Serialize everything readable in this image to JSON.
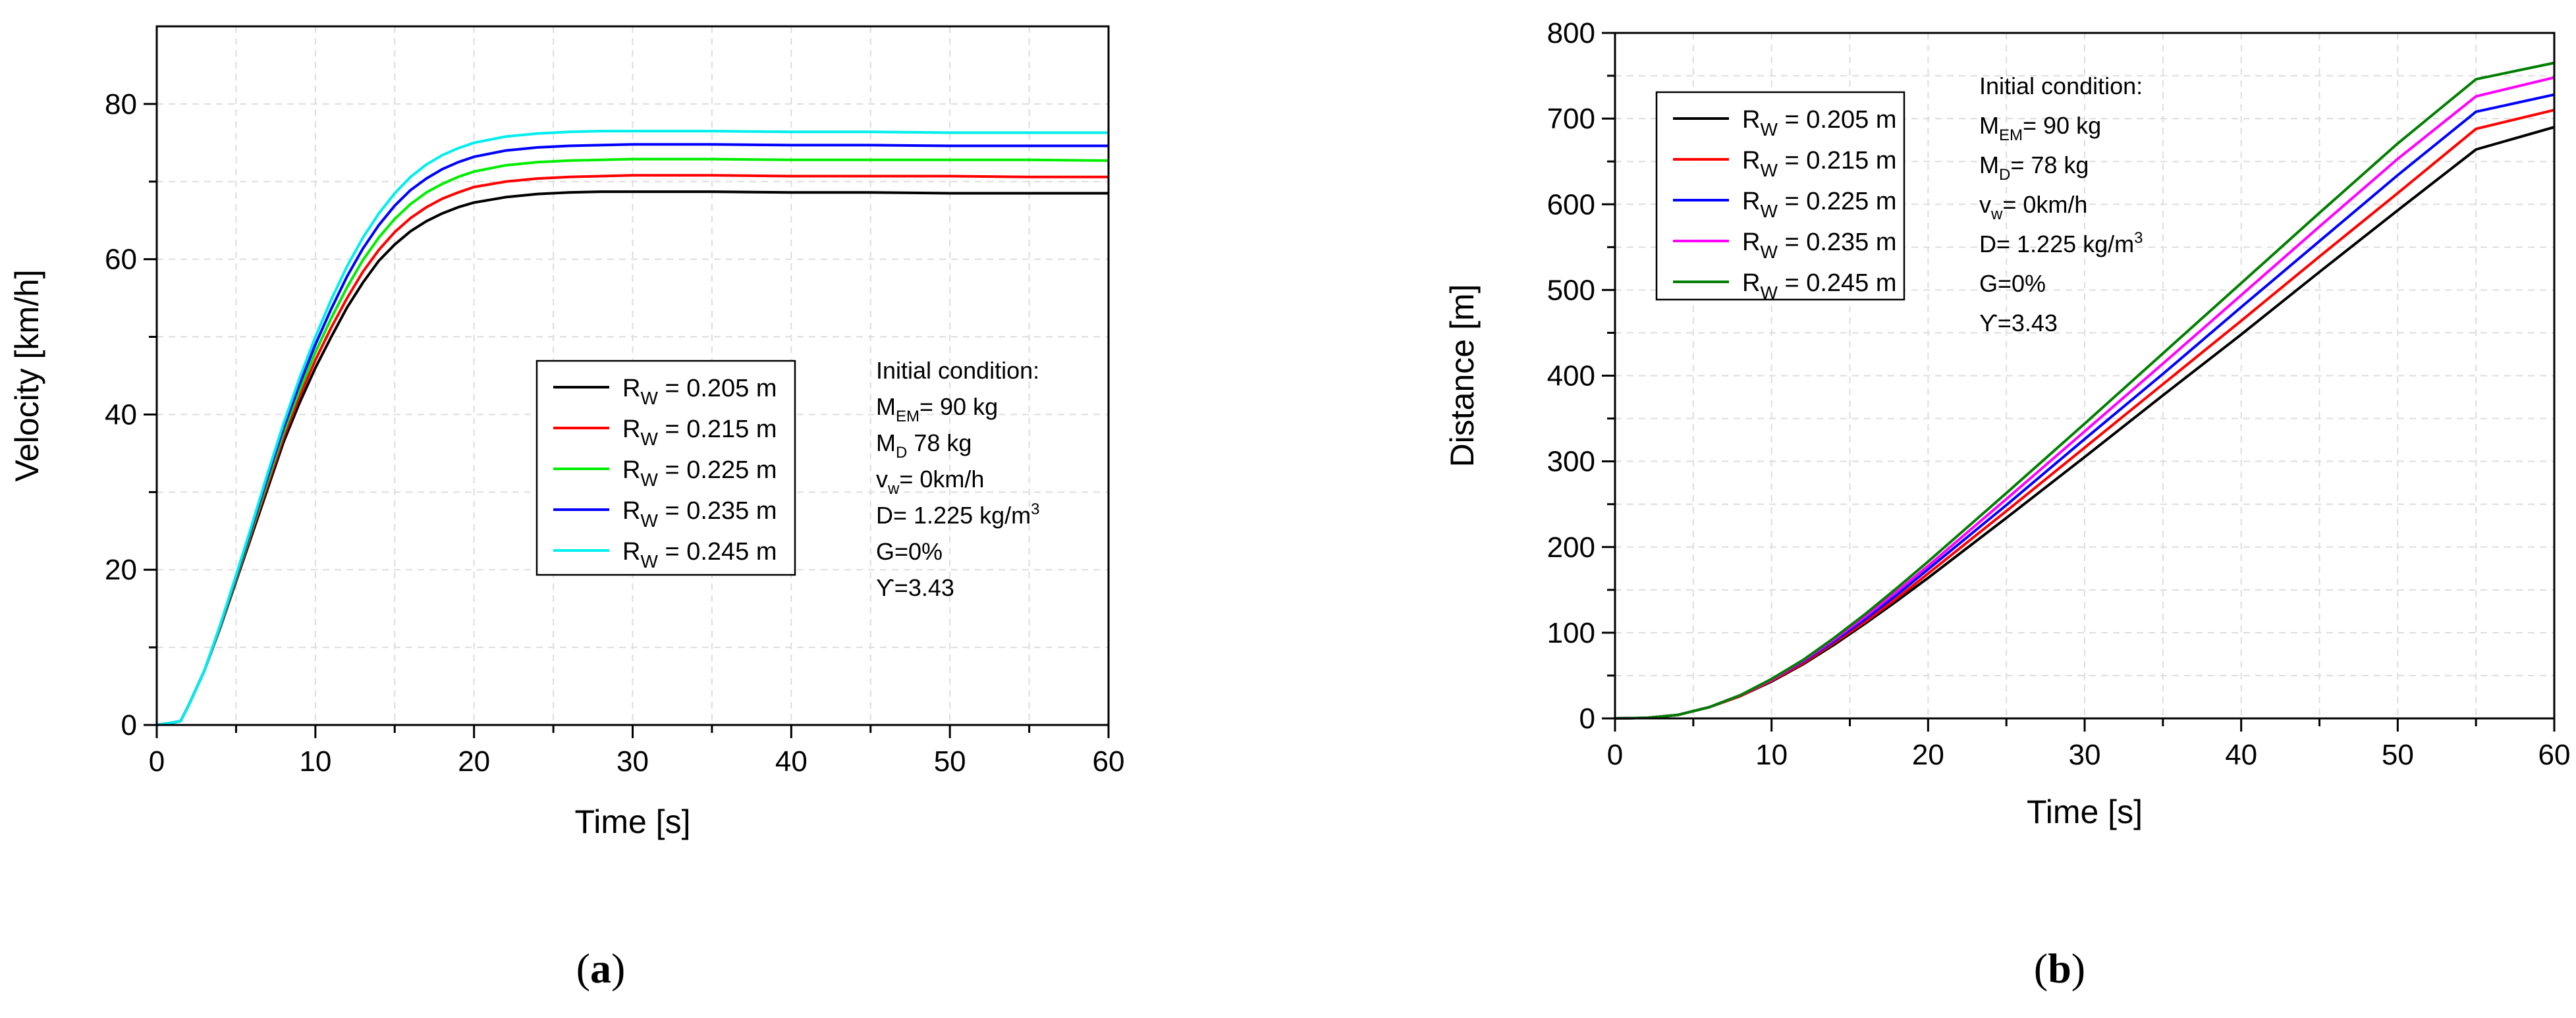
{
  "chart_data": [
    {
      "type": "line",
      "id": "a",
      "panel_label": "a",
      "xlabel": "Time [s]",
      "ylabel": "Velocity [km/h]",
      "xlim": [
        0,
        60
      ],
      "ylim": [
        0,
        90
      ],
      "xticks": [
        0,
        10,
        20,
        30,
        40,
        50,
        60
      ],
      "yticks": [
        0,
        20,
        40,
        60,
        80
      ],
      "grid": true,
      "legend_position": "center-right",
      "x": [
        0,
        1,
        1.5,
        2,
        3,
        4,
        5,
        6,
        7,
        8,
        9,
        10,
        11,
        12,
        13,
        14,
        15,
        16,
        17,
        18,
        19,
        20,
        22,
        24,
        26,
        28,
        30,
        35,
        40,
        45,
        50,
        55,
        60
      ],
      "series": [
        {
          "name": "R_W = 0.205 m",
          "sub": "W",
          "color": "#000000",
          "values": [
            0,
            0.3,
            0.5,
            2.5,
            7,
            12.5,
            18.5,
            24.5,
            30.5,
            36.5,
            41.5,
            46,
            50,
            53.8,
            57,
            59.8,
            61.9,
            63.6,
            64.9,
            65.9,
            66.7,
            67.3,
            68,
            68.4,
            68.6,
            68.7,
            68.7,
            68.7,
            68.6,
            68.6,
            68.5,
            68.5,
            68.5
          ]
        },
        {
          "name": "R_W = 0.215 m",
          "sub": "W",
          "color": "#ff0000",
          "values": [
            0,
            0.3,
            0.5,
            2.5,
            7,
            12.6,
            18.7,
            24.9,
            31,
            37.1,
            42.3,
            47,
            51.2,
            55,
            58.4,
            61.2,
            63.5,
            65.3,
            66.7,
            67.8,
            68.6,
            69.3,
            70,
            70.4,
            70.6,
            70.7,
            70.8,
            70.8,
            70.7,
            70.7,
            70.7,
            70.6,
            70.6
          ]
        },
        {
          "name": "R_W = 0.225 m",
          "sub": "W",
          "color": "#00ee00",
          "values": [
            0,
            0.3,
            0.5,
            2.5,
            7,
            12.7,
            18.9,
            25.2,
            31.5,
            37.7,
            43.1,
            48,
            52.4,
            56.4,
            59.9,
            62.8,
            65.2,
            67.1,
            68.6,
            69.7,
            70.6,
            71.3,
            72.1,
            72.5,
            72.7,
            72.8,
            72.9,
            72.9,
            72.8,
            72.8,
            72.8,
            72.8,
            72.7
          ]
        },
        {
          "name": "R_W = 0.235 m",
          "sub": "W",
          "color": "#0000ff",
          "values": [
            0,
            0.3,
            0.5,
            2.5,
            7,
            12.8,
            19.1,
            25.5,
            32,
            38.3,
            43.9,
            49,
            53.6,
            57.8,
            61.4,
            64.4,
            66.9,
            68.9,
            70.4,
            71.6,
            72.5,
            73.2,
            74,
            74.4,
            74.6,
            74.7,
            74.8,
            74.8,
            74.7,
            74.7,
            74.6,
            74.6,
            74.6
          ]
        },
        {
          "name": "R_W = 0.245 m",
          "sub": "W",
          "color": "#00eeee",
          "values": [
            0,
            0.3,
            0.5,
            2.5,
            7,
            12.9,
            19.3,
            25.8,
            32.5,
            38.9,
            44.7,
            50,
            54.8,
            59.1,
            62.8,
            65.9,
            68.5,
            70.6,
            72.2,
            73.4,
            74.3,
            75,
            75.8,
            76.2,
            76.4,
            76.5,
            76.5,
            76.5,
            76.4,
            76.4,
            76.3,
            76.3,
            76.3
          ]
        }
      ],
      "annotation": {
        "title": "Initial condition:",
        "lines": [
          {
            "base": "M",
            "sub": "EM",
            "rest": "= 90 kg"
          },
          {
            "base": "M",
            "sub": "D",
            "rest": " 78 kg"
          },
          {
            "base": "v",
            "sub": "w",
            "rest": "= 0km/h"
          },
          {
            "base": "D= 1.225 kg/m",
            "sup": "3",
            "rest": ""
          },
          {
            "base": "G=0%",
            "rest": ""
          },
          {
            "base": "ϒ=3.43",
            "rest": ""
          }
        ]
      }
    },
    {
      "type": "line",
      "id": "b",
      "panel_label": "b",
      "xlabel": "Time [s]",
      "ylabel": "Distance [m]",
      "xlim": [
        0,
        60
      ],
      "ylim": [
        0,
        800
      ],
      "xticks": [
        0,
        10,
        20,
        30,
        40,
        50,
        60
      ],
      "yticks": [
        0,
        100,
        200,
        300,
        400,
        500,
        600,
        700,
        800
      ],
      "grid": true,
      "legend_position": "top-left",
      "x": [
        0,
        2,
        4,
        6,
        8,
        10,
        12,
        14,
        16,
        18,
        20,
        25,
        30,
        35,
        40,
        45,
        50,
        55,
        60
      ],
      "series": [
        {
          "name": "R_W = 0.205 m",
          "sub": "W",
          "color": "#000000",
          "values": [
            0,
            0.5,
            4,
            13,
            26,
            43,
            63,
            86,
            111,
            137,
            164,
            234,
            305,
            377,
            448,
            521,
            593,
            664,
            690
          ]
        },
        {
          "name": "R_W = 0.215 m",
          "sub": "W",
          "color": "#ff0000",
          "values": [
            0,
            0.5,
            4,
            13,
            26,
            44,
            64,
            88,
            113,
            140,
            169,
            242,
            316,
            390,
            464,
            539,
            613,
            688,
            710
          ]
        },
        {
          "name": "R_W = 0.225 m",
          "sub": "W",
          "color": "#0000ff",
          "values": [
            0,
            0.5,
            4,
            13,
            27,
            45,
            66,
            90,
            116,
            144,
            174,
            249,
            326,
            402,
            480,
            557,
            634,
            708,
            728
          ]
        },
        {
          "name": "R_W = 0.235 m",
          "sub": "W",
          "color": "#ff00ff",
          "values": [
            0,
            0.5,
            4,
            13,
            27,
            45,
            67,
            92,
            119,
            148,
            178,
            256,
            335,
            414,
            494,
            574,
            653,
            726,
            748
          ]
        },
        {
          "name": "R_W = 0.245 m",
          "sub": "W",
          "color": "#007f00",
          "values": [
            0,
            0.5,
            4,
            13,
            27,
            46,
            68,
            94,
            122,
            152,
            183,
            263,
            344,
            426,
            508,
            590,
            671,
            746,
            765
          ]
        }
      ],
      "annotation": {
        "title": "Initial condition:",
        "lines": [
          {
            "base": "M",
            "sub": "EM",
            "rest": "= 90 kg"
          },
          {
            "base": "M",
            "sub": "D",
            "rest": "= 78 kg"
          },
          {
            "base": "v",
            "sub": "w",
            "rest": "= 0km/h"
          },
          {
            "base": "D= 1.225 kg/m",
            "sup": "3",
            "rest": ""
          },
          {
            "base": "G=0%",
            "rest": ""
          },
          {
            "base": "ϒ=3.43",
            "rest": ""
          }
        ]
      }
    }
  ]
}
